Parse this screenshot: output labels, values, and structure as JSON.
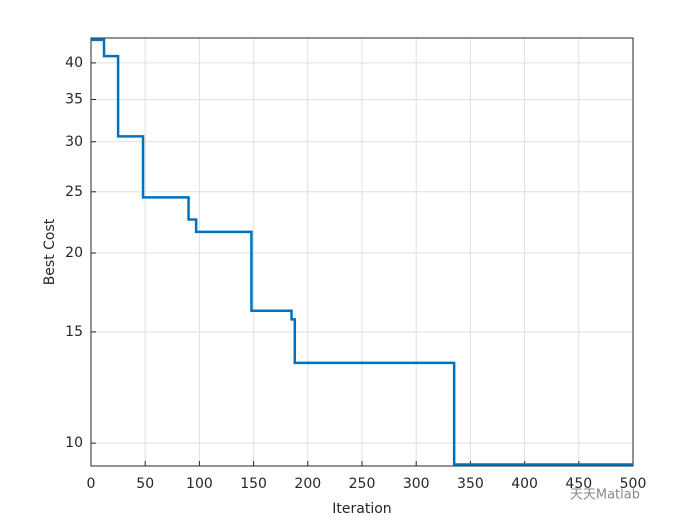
{
  "chart_data": {
    "type": "line",
    "xlabel": "Iteration",
    "ylabel": "Best Cost",
    "x": [
      0,
      12,
      12,
      25,
      25,
      48,
      48,
      90,
      90,
      97,
      97,
      148,
      148,
      185,
      185,
      188,
      188,
      335,
      335,
      500
    ],
    "series": [
      {
        "name": "Best Cost",
        "color": "#0072bd",
        "values": [
          43.5,
          43.5,
          41,
          41,
          30.6,
          30.6,
          24.5,
          24.5,
          22.6,
          22.6,
          21.6,
          21.6,
          16.2,
          16.2,
          15.7,
          15.7,
          13.4,
          13.4,
          9.25,
          9.25
        ]
      }
    ],
    "xlim": [
      0,
      500
    ],
    "xticks": [
      0,
      50,
      100,
      150,
      200,
      250,
      300,
      350,
      400,
      450,
      500
    ],
    "ylim": [
      9.2,
      43.8
    ],
    "yticks": [
      10,
      15,
      20,
      25,
      30,
      35,
      40
    ],
    "log_y": true,
    "grid": true,
    "watermark": "天天Matlab"
  }
}
